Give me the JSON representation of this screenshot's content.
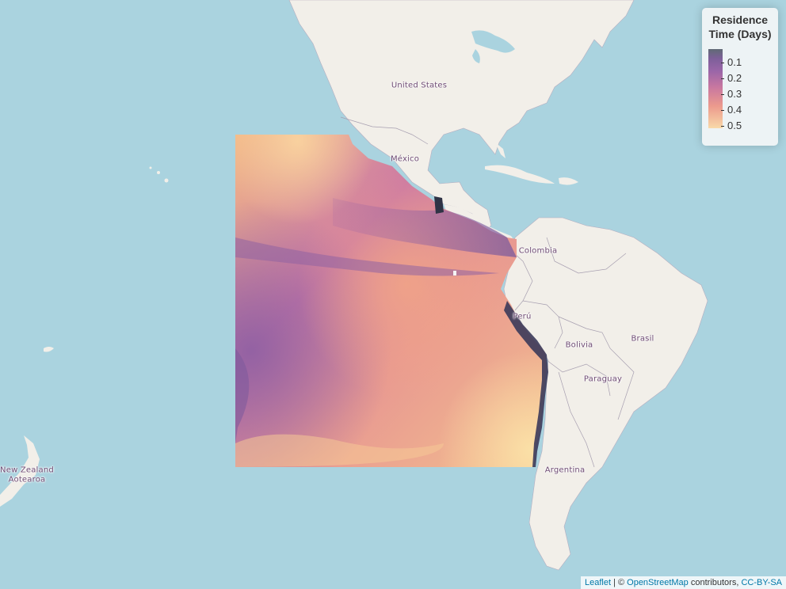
{
  "map": {
    "labels": {
      "united_states": "United States",
      "mexico": "México",
      "colombia": "Colombia",
      "peru": "Perú",
      "bolivia": "Bolivia",
      "brasil": "Brasil",
      "paraguay": "Paraguay",
      "argentina": "Argentina",
      "new_zealand": "New Zealand",
      "aotearoa": "Aotearoa"
    },
    "colors": {
      "ocean": "#aad3df",
      "land": "#f2efe9",
      "border": "#9e98a8",
      "label": "#6e4a73"
    }
  },
  "legend": {
    "title_line1": "Residence",
    "title_line2": "Time (Days)",
    "ticks": [
      "0.1",
      "0.2",
      "0.3",
      "0.4",
      "0.5"
    ],
    "colors": [
      "#606a76",
      "#8a5f9f",
      "#b06aa5",
      "#e08a93",
      "#f8d9a8"
    ]
  },
  "attribution": {
    "leaflet": "Leaflet",
    "separator": " | © ",
    "osm": "OpenStreetMap",
    "contributors": " contributors, ",
    "license": "CC-BY-SA"
  }
}
